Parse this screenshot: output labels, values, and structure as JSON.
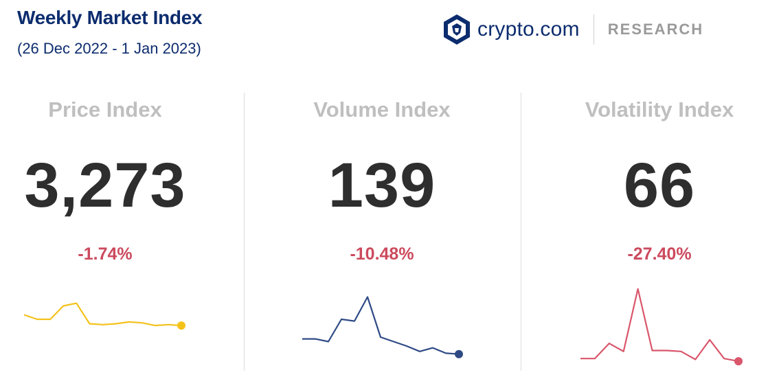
{
  "header": {
    "title": "Weekly Market Index",
    "subtitle": "(26 Dec 2022 - 1 Jan 2023)"
  },
  "brand": {
    "name": "crypto.com",
    "tagline": "RESEARCH",
    "logo_icon": "crypto-com-lion-shield-icon",
    "color": "#0c2c6e"
  },
  "chart_data": [
    {
      "type": "line",
      "label": "Price Index",
      "value": "3,273",
      "change": "-1.74%",
      "color": "#f4c21b",
      "values": [
        0.55,
        0.5,
        0.5,
        0.65,
        0.68,
        0.45,
        0.44,
        0.45,
        0.47,
        0.46,
        0.43,
        0.44,
        0.43
      ],
      "ylim": [
        0,
        1
      ]
    },
    {
      "type": "line",
      "label": "Volume Index",
      "value": "139",
      "change": "-10.48%",
      "color": "#2e4a85",
      "values": [
        0.28,
        0.28,
        0.25,
        0.5,
        0.48,
        0.75,
        0.3,
        0.25,
        0.2,
        0.14,
        0.18,
        0.12,
        0.11
      ],
      "ylim": [
        0,
        1
      ]
    },
    {
      "type": "line",
      "label": "Volatility Index",
      "value": "66",
      "change": "-27.40%",
      "color": "#d9566b",
      "values": [
        0.06,
        0.06,
        0.23,
        0.14,
        0.84,
        0.15,
        0.15,
        0.14,
        0.05,
        0.27,
        0.06,
        0.03
      ],
      "ylim": [
        0,
        1
      ]
    }
  ]
}
